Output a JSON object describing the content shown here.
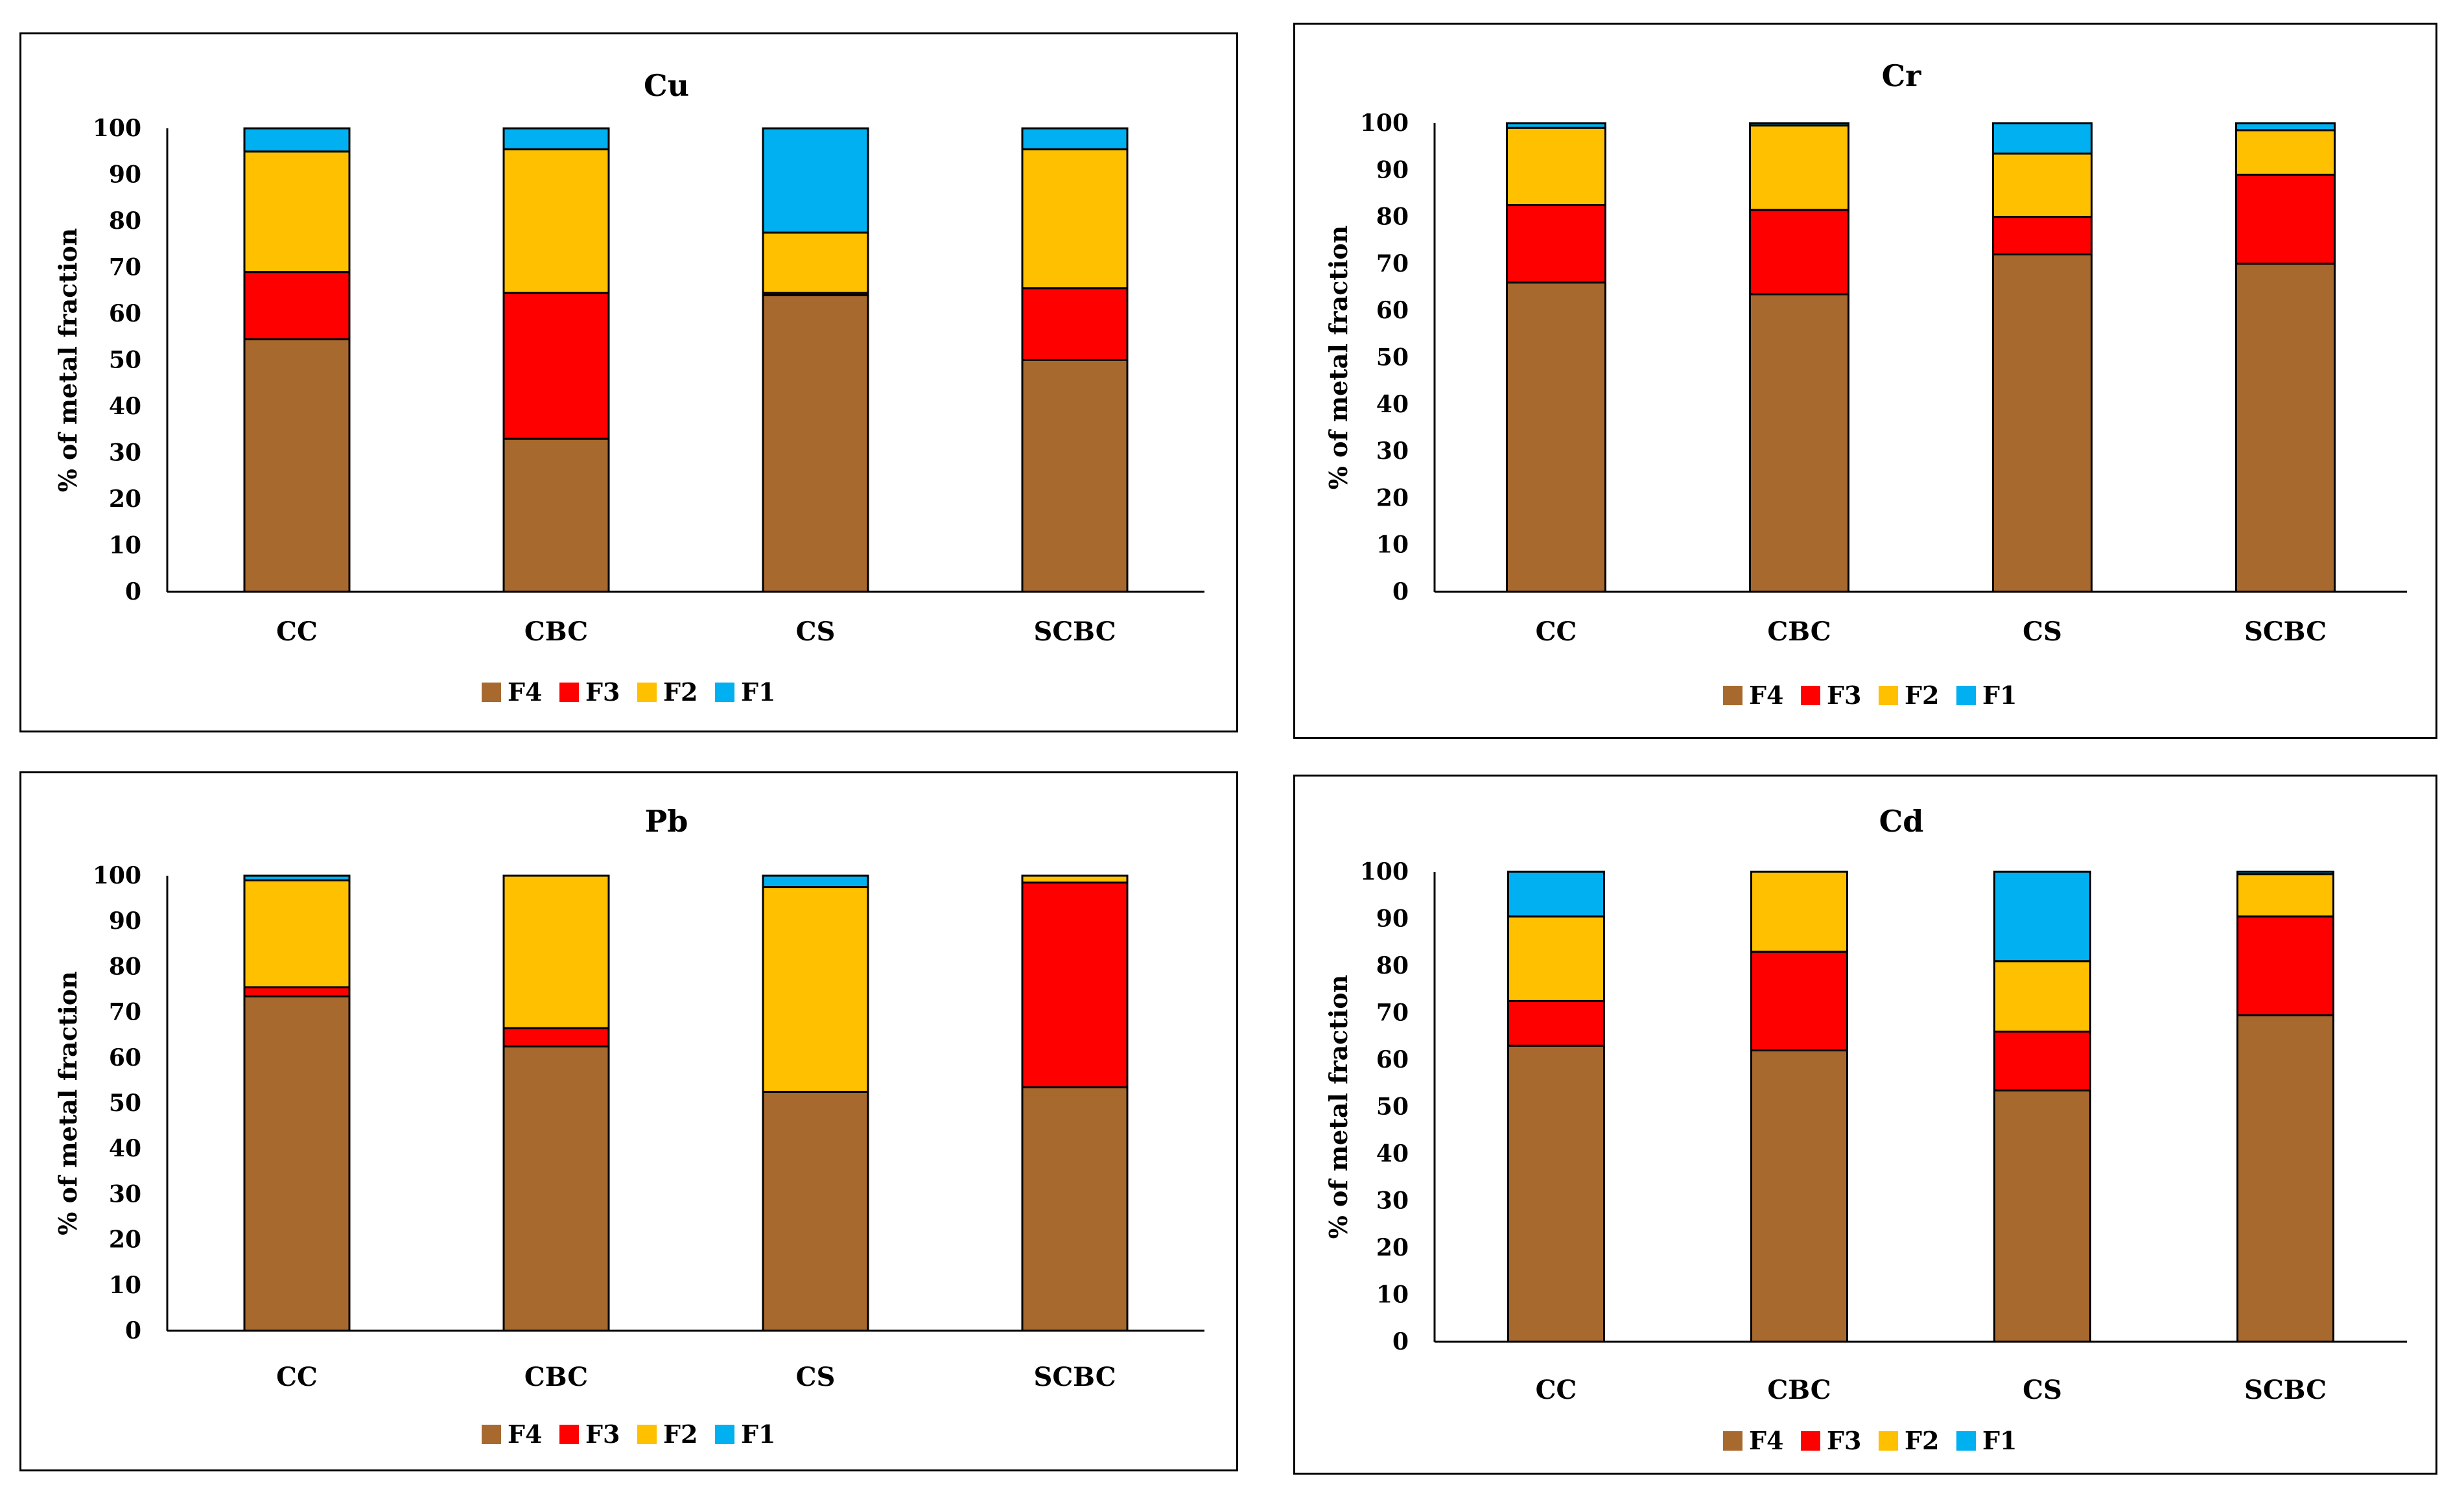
{
  "colors": {
    "F4": "#a8692e",
    "F3": "#ff0000",
    "F2": "#ffc000",
    "F1": "#00b0f0"
  },
  "chart_data": [
    {
      "type": "bar",
      "stacked": true,
      "title": "Cu",
      "ylabel": "% of metal fraction",
      "xlabel": "",
      "ylim": [
        0,
        100
      ],
      "yticks": [
        "0",
        "10",
        "20",
        "30",
        "40",
        "50",
        "60",
        "70",
        "80",
        "90",
        "100"
      ],
      "categories": [
        "CC",
        "CBC",
        "CS",
        "SCBC"
      ],
      "legend": [
        "F4",
        "F3",
        "F2",
        "F1"
      ],
      "legend_position": "bottom",
      "series": [
        {
          "name": "F4",
          "values": [
            54.5,
            33.0,
            64.0,
            50.0
          ]
        },
        {
          "name": "F3",
          "values": [
            14.5,
            31.5,
            0.5,
            15.5
          ]
        },
        {
          "name": "F2",
          "values": [
            26.0,
            31.0,
            13.0,
            30.0
          ]
        },
        {
          "name": "F1",
          "values": [
            5.0,
            4.5,
            22.5,
            4.5
          ]
        }
      ]
    },
    {
      "type": "bar",
      "stacked": true,
      "title": "Cr",
      "ylabel": "% of metal fraction",
      "xlabel": "",
      "ylim": [
        0,
        100
      ],
      "yticks": [
        "0",
        "10",
        "20",
        "30",
        "40",
        "50",
        "60",
        "70",
        "80",
        "90",
        "100"
      ],
      "categories": [
        "CC",
        "CBC",
        "CS",
        "SCBC"
      ],
      "legend": [
        "F4",
        "F3",
        "F2",
        "F1"
      ],
      "legend_position": "bottom",
      "series": [
        {
          "name": "F4",
          "values": [
            66.0,
            63.5,
            72.0,
            70.0
          ]
        },
        {
          "name": "F3",
          "values": [
            16.5,
            18.0,
            8.0,
            19.0
          ]
        },
        {
          "name": "F2",
          "values": [
            16.5,
            18.0,
            13.5,
            9.5
          ]
        },
        {
          "name": "F1",
          "values": [
            1.0,
            0.5,
            6.5,
            1.5
          ]
        }
      ]
    },
    {
      "type": "bar",
      "stacked": true,
      "title": "Pb",
      "ylabel": "% of metal fraction",
      "xlabel": "",
      "ylim": [
        0,
        100
      ],
      "yticks": [
        "0",
        "10",
        "20",
        "30",
        "40",
        "50",
        "60",
        "70",
        "80",
        "90",
        "100"
      ],
      "categories": [
        "CC",
        "CBC",
        "CS",
        "SCBC"
      ],
      "legend": [
        "F4",
        "F3",
        "F2",
        "F1"
      ],
      "legend_position": "bottom",
      "series": [
        {
          "name": "F4",
          "values": [
            73.5,
            62.5,
            52.5,
            53.5
          ]
        },
        {
          "name": "F3",
          "values": [
            2.0,
            4.0,
            0.0,
            45.0
          ]
        },
        {
          "name": "F2",
          "values": [
            23.5,
            33.5,
            45.0,
            1.5
          ]
        },
        {
          "name": "F1",
          "values": [
            1.0,
            0.0,
            2.5,
            0.0
          ]
        }
      ]
    },
    {
      "type": "bar",
      "stacked": true,
      "title": "Cd",
      "ylabel": "% of metal fraction",
      "xlabel": "",
      "ylim": [
        0,
        100
      ],
      "yticks": [
        "0",
        "10",
        "20",
        "30",
        "40",
        "50",
        "60",
        "70",
        "80",
        "90",
        "100"
      ],
      "categories": [
        "CC",
        "CBC",
        "CS",
        "SCBC"
      ],
      "legend": [
        "F4",
        "F3",
        "F2",
        "F1"
      ],
      "legend_position": "bottom",
      "series": [
        {
          "name": "F4",
          "values": [
            63.0,
            62.0,
            53.5,
            69.5
          ]
        },
        {
          "name": "F3",
          "values": [
            9.5,
            21.0,
            12.5,
            21.0
          ]
        },
        {
          "name": "F2",
          "values": [
            18.0,
            17.0,
            15.0,
            9.0
          ]
        },
        {
          "name": "F1",
          "values": [
            9.5,
            0.0,
            19.0,
            0.5
          ]
        }
      ]
    }
  ]
}
